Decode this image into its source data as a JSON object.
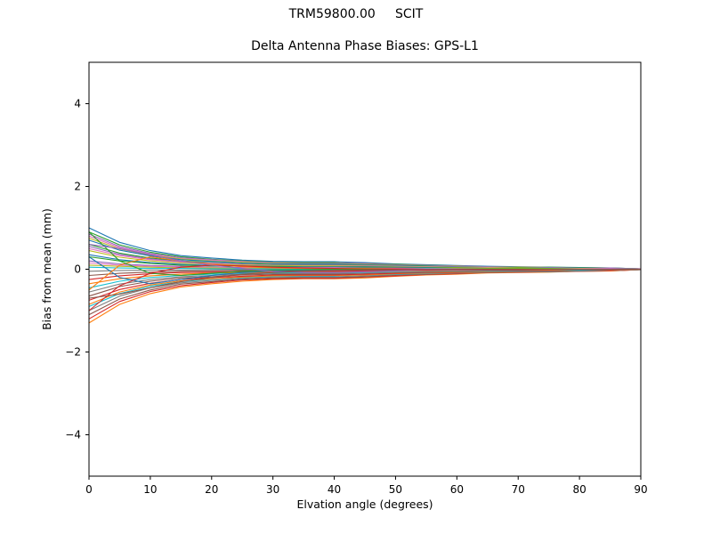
{
  "figure": {
    "title": "TRM59800.00     SCIT",
    "subtitle": "Delta Antenna Phase Biases: GPS-L1"
  },
  "chart_data": {
    "type": "line",
    "title": "TRM59800.00     SCIT",
    "subtitle": "Delta Antenna Phase Biases: GPS-L1",
    "xlabel": "Elvation angle (degrees)",
    "ylabel": "Bias from mean (mm)",
    "xlim": [
      0,
      90
    ],
    "ylim": [
      -5,
      5
    ],
    "xticks": [
      0,
      10,
      20,
      30,
      40,
      50,
      60,
      70,
      80,
      90
    ],
    "xtick_labels": [
      "0",
      "10",
      "20",
      "30",
      "40",
      "50",
      "60",
      "70",
      "80",
      "90"
    ],
    "yticks": [
      -4,
      -2,
      0,
      2,
      4
    ],
    "ytick_labels": [
      "−4",
      "−2",
      "0",
      "2",
      "4"
    ],
    "grid": false,
    "legend": "none",
    "x": [
      0,
      5,
      10,
      15,
      20,
      25,
      30,
      35,
      40,
      45,
      50,
      55,
      60,
      65,
      70,
      75,
      80,
      85,
      90
    ],
    "series": [
      {
        "color": "#1f77b4",
        "values": [
          1.0,
          0.65,
          0.45,
          0.33,
          0.27,
          0.22,
          0.19,
          0.18,
          0.18,
          0.16,
          0.13,
          0.11,
          0.09,
          0.07,
          0.06,
          0.05,
          0.04,
          0.03,
          0.01
        ]
      },
      {
        "color": "#ff7f0e",
        "values": [
          -1.3,
          -0.85,
          -0.59,
          -0.43,
          -0.35,
          -0.29,
          -0.25,
          -0.23,
          -0.23,
          -0.21,
          -0.17,
          -0.14,
          -0.12,
          -0.09,
          -0.08,
          -0.07,
          -0.05,
          -0.04,
          -0.01
        ]
      },
      {
        "color": "#2ca02c",
        "values": [
          0.9,
          0.59,
          0.41,
          0.3,
          0.24,
          0.2,
          0.17,
          0.16,
          0.16,
          0.14,
          0.12,
          0.1,
          0.08,
          0.06,
          0.05,
          0.05,
          0.04,
          0.03,
          0.01
        ]
      },
      {
        "color": "#d62728",
        "values": [
          -1.2,
          -0.78,
          -0.54,
          -0.4,
          -0.32,
          -0.26,
          -0.23,
          -0.22,
          -0.22,
          -0.19,
          -0.16,
          -0.13,
          -0.11,
          -0.08,
          -0.07,
          -0.06,
          -0.05,
          -0.04,
          -0.01
        ]
      },
      {
        "color": "#9467bd",
        "values": [
          0.85,
          0.55,
          0.38,
          0.28,
          0.23,
          0.19,
          0.16,
          0.15,
          0.15,
          0.14,
          0.11,
          0.09,
          0.08,
          0.06,
          0.05,
          0.04,
          0.03,
          0.03,
          0.01
        ]
      },
      {
        "color": "#8c564b",
        "values": [
          -1.1,
          -0.72,
          -0.5,
          -0.36,
          -0.3,
          -0.24,
          -0.21,
          -0.2,
          -0.2,
          -0.18,
          -0.14,
          -0.12,
          -0.1,
          -0.08,
          -0.07,
          -0.06,
          -0.04,
          -0.03,
          -0.01
        ]
      },
      {
        "color": "#e377c2",
        "values": [
          0.8,
          0.52,
          0.36,
          0.26,
          0.22,
          0.18,
          0.15,
          0.14,
          0.14,
          0.13,
          0.1,
          0.09,
          0.07,
          0.06,
          0.05,
          0.04,
          0.03,
          0.02,
          0.01
        ]
      },
      {
        "color": "#7f7f7f",
        "values": [
          -1.0,
          -0.65,
          -0.45,
          -0.33,
          -0.27,
          -0.22,
          -0.19,
          -0.18,
          -0.18,
          -0.16,
          -0.13,
          -0.11,
          -0.09,
          -0.07,
          -0.06,
          -0.05,
          -0.04,
          -0.03,
          -0.01
        ]
      },
      {
        "color": "#bcbd22",
        "values": [
          0.75,
          0.49,
          0.34,
          0.25,
          0.2,
          0.17,
          0.14,
          0.14,
          0.14,
          0.12,
          0.1,
          0.08,
          0.07,
          0.05,
          0.05,
          0.04,
          0.03,
          0.02,
          0.01
        ]
      },
      {
        "color": "#17becf",
        "values": [
          -0.9,
          -0.59,
          -0.41,
          -0.3,
          -0.24,
          -0.2,
          -0.17,
          -0.16,
          -0.16,
          -0.14,
          -0.12,
          -0.1,
          -0.08,
          -0.06,
          -0.05,
          -0.05,
          -0.04,
          -0.03,
          -0.01
        ]
      },
      {
        "color": "#1f77b4",
        "values": [
          0.7,
          0.46,
          0.32,
          0.23,
          0.19,
          0.15,
          0.13,
          0.13,
          0.13,
          0.11,
          0.09,
          0.08,
          0.06,
          0.05,
          0.04,
          0.04,
          0.03,
          0.02,
          0.01
        ]
      },
      {
        "color": "#ff7f0e",
        "values": [
          -0.85,
          -0.55,
          -0.38,
          -0.28,
          -0.23,
          -0.19,
          -0.16,
          -0.15,
          -0.15,
          -0.14,
          -0.11,
          -0.09,
          -0.08,
          -0.06,
          -0.05,
          -0.04,
          -0.03,
          -0.03,
          -0.01
        ]
      },
      {
        "color": "#2ca02c",
        "values": [
          0.6,
          0.39,
          0.27,
          0.2,
          0.16,
          0.13,
          0.11,
          0.11,
          0.11,
          0.1,
          0.08,
          0.07,
          0.05,
          0.04,
          0.04,
          0.03,
          0.02,
          0.02,
          0.01
        ]
      },
      {
        "color": "#d62728",
        "values": [
          -0.75,
          -0.49,
          -0.34,
          -0.25,
          -0.2,
          -0.17,
          -0.14,
          -0.14,
          -0.14,
          -0.12,
          -0.1,
          -0.08,
          -0.07,
          -0.05,
          -0.05,
          -0.04,
          -0.03,
          -0.02,
          -0.01
        ]
      },
      {
        "color": "#9467bd",
        "values": [
          0.55,
          0.36,
          0.25,
          0.18,
          0.15,
          0.12,
          0.1,
          0.1,
          0.1,
          0.09,
          0.07,
          0.06,
          0.05,
          0.04,
          0.03,
          0.03,
          0.02,
          0.02,
          0.01
        ]
      },
      {
        "color": "#8c564b",
        "values": [
          -0.65,
          -0.42,
          -0.29,
          -0.21,
          -0.18,
          -0.14,
          -0.12,
          -0.12,
          -0.12,
          -0.1,
          -0.08,
          -0.07,
          -0.06,
          -0.05,
          -0.04,
          -0.03,
          -0.03,
          -0.02,
          -0.01
        ]
      },
      {
        "color": "#e377c2",
        "values": [
          0.5,
          0.33,
          0.23,
          0.17,
          0.14,
          0.11,
          0.1,
          0.09,
          0.09,
          0.08,
          0.07,
          0.06,
          0.05,
          0.04,
          0.03,
          0.03,
          0.02,
          0.02,
          0.01
        ]
      },
      {
        "color": "#7f7f7f",
        "values": [
          -0.55,
          -0.36,
          -0.25,
          -0.18,
          -0.15,
          -0.12,
          -0.1,
          -0.1,
          -0.1,
          -0.09,
          -0.07,
          -0.06,
          -0.05,
          -0.04,
          -0.03,
          -0.03,
          -0.02,
          -0.02,
          -0.01
        ]
      },
      {
        "color": "#bcbd22",
        "values": [
          0.45,
          0.29,
          0.2,
          0.15,
          0.12,
          0.1,
          0.09,
          0.08,
          0.08,
          0.07,
          0.06,
          0.05,
          0.04,
          0.03,
          0.03,
          0.02,
          0.02,
          0.01,
          0.0
        ]
      },
      {
        "color": "#17becf",
        "values": [
          -0.45,
          -0.29,
          -0.2,
          -0.15,
          -0.12,
          -0.1,
          -0.09,
          -0.08,
          -0.08,
          -0.07,
          -0.06,
          -0.05,
          -0.04,
          -0.03,
          -0.03,
          -0.02,
          -0.02,
          -0.01,
          0.0
        ]
      },
      {
        "color": "#1f77b4",
        "values": [
          0.35,
          0.23,
          0.16,
          0.12,
          0.09,
          0.08,
          0.07,
          0.06,
          0.06,
          0.06,
          0.05,
          0.04,
          0.03,
          0.02,
          0.02,
          0.02,
          0.01,
          0.01,
          0.0
        ]
      },
      {
        "color": "#ff7f0e",
        "values": [
          -0.35,
          -0.23,
          -0.16,
          -0.12,
          -0.09,
          -0.08,
          -0.07,
          -0.06,
          -0.06,
          -0.06,
          -0.05,
          -0.04,
          -0.03,
          -0.02,
          -0.02,
          -0.02,
          -0.01,
          -0.01,
          0.0
        ]
      },
      {
        "color": "#2ca02c",
        "values": [
          0.3,
          0.2,
          0.14,
          0.1,
          0.08,
          0.07,
          0.06,
          0.05,
          0.05,
          0.05,
          0.04,
          0.03,
          0.03,
          0.02,
          0.02,
          0.02,
          0.01,
          0.01,
          0.0
        ]
      },
      {
        "color": "#d62728",
        "values": [
          -0.25,
          -0.16,
          -0.11,
          -0.08,
          -0.07,
          -0.06,
          -0.05,
          -0.05,
          -0.05,
          -0.04,
          -0.03,
          -0.03,
          -0.02,
          -0.02,
          -0.02,
          -0.01,
          -0.01,
          -0.01,
          0.0
        ]
      },
      {
        "color": "#9467bd",
        "values": [
          0.2,
          0.13,
          0.09,
          0.07,
          0.05,
          0.04,
          0.04,
          0.04,
          0.04,
          0.03,
          0.03,
          0.02,
          0.02,
          0.01,
          0.01,
          0.01,
          0.01,
          0.01,
          0.0
        ]
      },
      {
        "color": "#8c564b",
        "values": [
          -0.15,
          -0.1,
          -0.07,
          -0.05,
          -0.04,
          -0.03,
          -0.03,
          -0.03,
          -0.03,
          -0.02,
          -0.02,
          -0.02,
          -0.01,
          -0.01,
          -0.01,
          -0.01,
          -0.01,
          0.0,
          0.0
        ]
      },
      {
        "color": "#e377c2",
        "values": [
          0.15,
          0.1,
          0.07,
          0.05,
          0.04,
          0.03,
          0.03,
          0.03,
          0.03,
          0.02,
          0.02,
          0.02,
          0.01,
          0.01,
          0.01,
          0.01,
          0.01,
          0.0,
          0.0
        ]
      },
      {
        "color": "#7f7f7f",
        "values": [
          -0.05,
          -0.03,
          -0.02,
          -0.02,
          -0.01,
          -0.01,
          -0.01,
          -0.01,
          -0.01,
          -0.01,
          -0.01,
          -0.01,
          0.0,
          0.0,
          0.0,
          0.0,
          0.0,
          0.0,
          0.0
        ]
      },
      {
        "color": "#bcbd22",
        "values": [
          0.1,
          0.07,
          0.05,
          0.03,
          0.03,
          0.02,
          0.02,
          0.02,
          0.02,
          0.02,
          0.01,
          0.01,
          0.01,
          0.01,
          0.01,
          0.01,
          0.0,
          0.0,
          0.0
        ]
      },
      {
        "color": "#17becf",
        "values": [
          0.05,
          0.03,
          0.02,
          0.02,
          0.01,
          0.01,
          0.01,
          0.01,
          0.01,
          0.01,
          0.01,
          0.01,
          0.0,
          0.0,
          0.0,
          0.0,
          0.0,
          0.0,
          0.0
        ]
      },
      {
        "color": "#1f77b4",
        "values": [
          0.3,
          -0.2,
          -0.35,
          -0.25,
          -0.15,
          -0.08,
          -0.04,
          -0.02,
          0.0,
          0.01,
          0.01,
          0.0,
          0.0,
          0.0,
          0.0,
          0.0,
          0.0,
          0.0,
          0.0
        ]
      },
      {
        "color": "#ff7f0e",
        "values": [
          -0.5,
          0.1,
          0.3,
          0.2,
          0.12,
          0.06,
          0.03,
          0.02,
          0.01,
          0.01,
          0.0,
          0.0,
          0.0,
          0.0,
          0.0,
          0.0,
          0.0,
          0.0,
          0.0
        ]
      },
      {
        "color": "#2ca02c",
        "values": [
          0.9,
          0.2,
          -0.1,
          -0.15,
          -0.1,
          -0.05,
          -0.02,
          -0.01,
          0.0,
          0.0,
          0.0,
          0.0,
          0.0,
          0.0,
          0.0,
          0.0,
          0.0,
          0.0,
          0.0
        ]
      },
      {
        "color": "#d62728",
        "values": [
          -1.0,
          -0.4,
          -0.1,
          0.05,
          0.1,
          0.08,
          0.05,
          0.03,
          0.02,
          0.01,
          0.01,
          0.0,
          0.0,
          0.0,
          0.0,
          0.0,
          0.0,
          0.0,
          0.0
        ]
      },
      {
        "color": "#9467bd",
        "values": [
          0.6,
          0.5,
          0.35,
          0.2,
          0.1,
          0.02,
          -0.05,
          -0.08,
          -0.08,
          -0.06,
          -0.04,
          -0.02,
          -0.01,
          0.0,
          0.0,
          0.0,
          0.0,
          0.0,
          0.0
        ]
      },
      {
        "color": "#8c564b",
        "values": [
          -0.7,
          -0.6,
          -0.45,
          -0.3,
          -0.2,
          -0.12,
          -0.08,
          -0.05,
          -0.03,
          -0.02,
          -0.01,
          -0.01,
          0.0,
          0.0,
          0.0,
          0.0,
          0.0,
          0.0,
          0.0
        ]
      }
    ]
  }
}
